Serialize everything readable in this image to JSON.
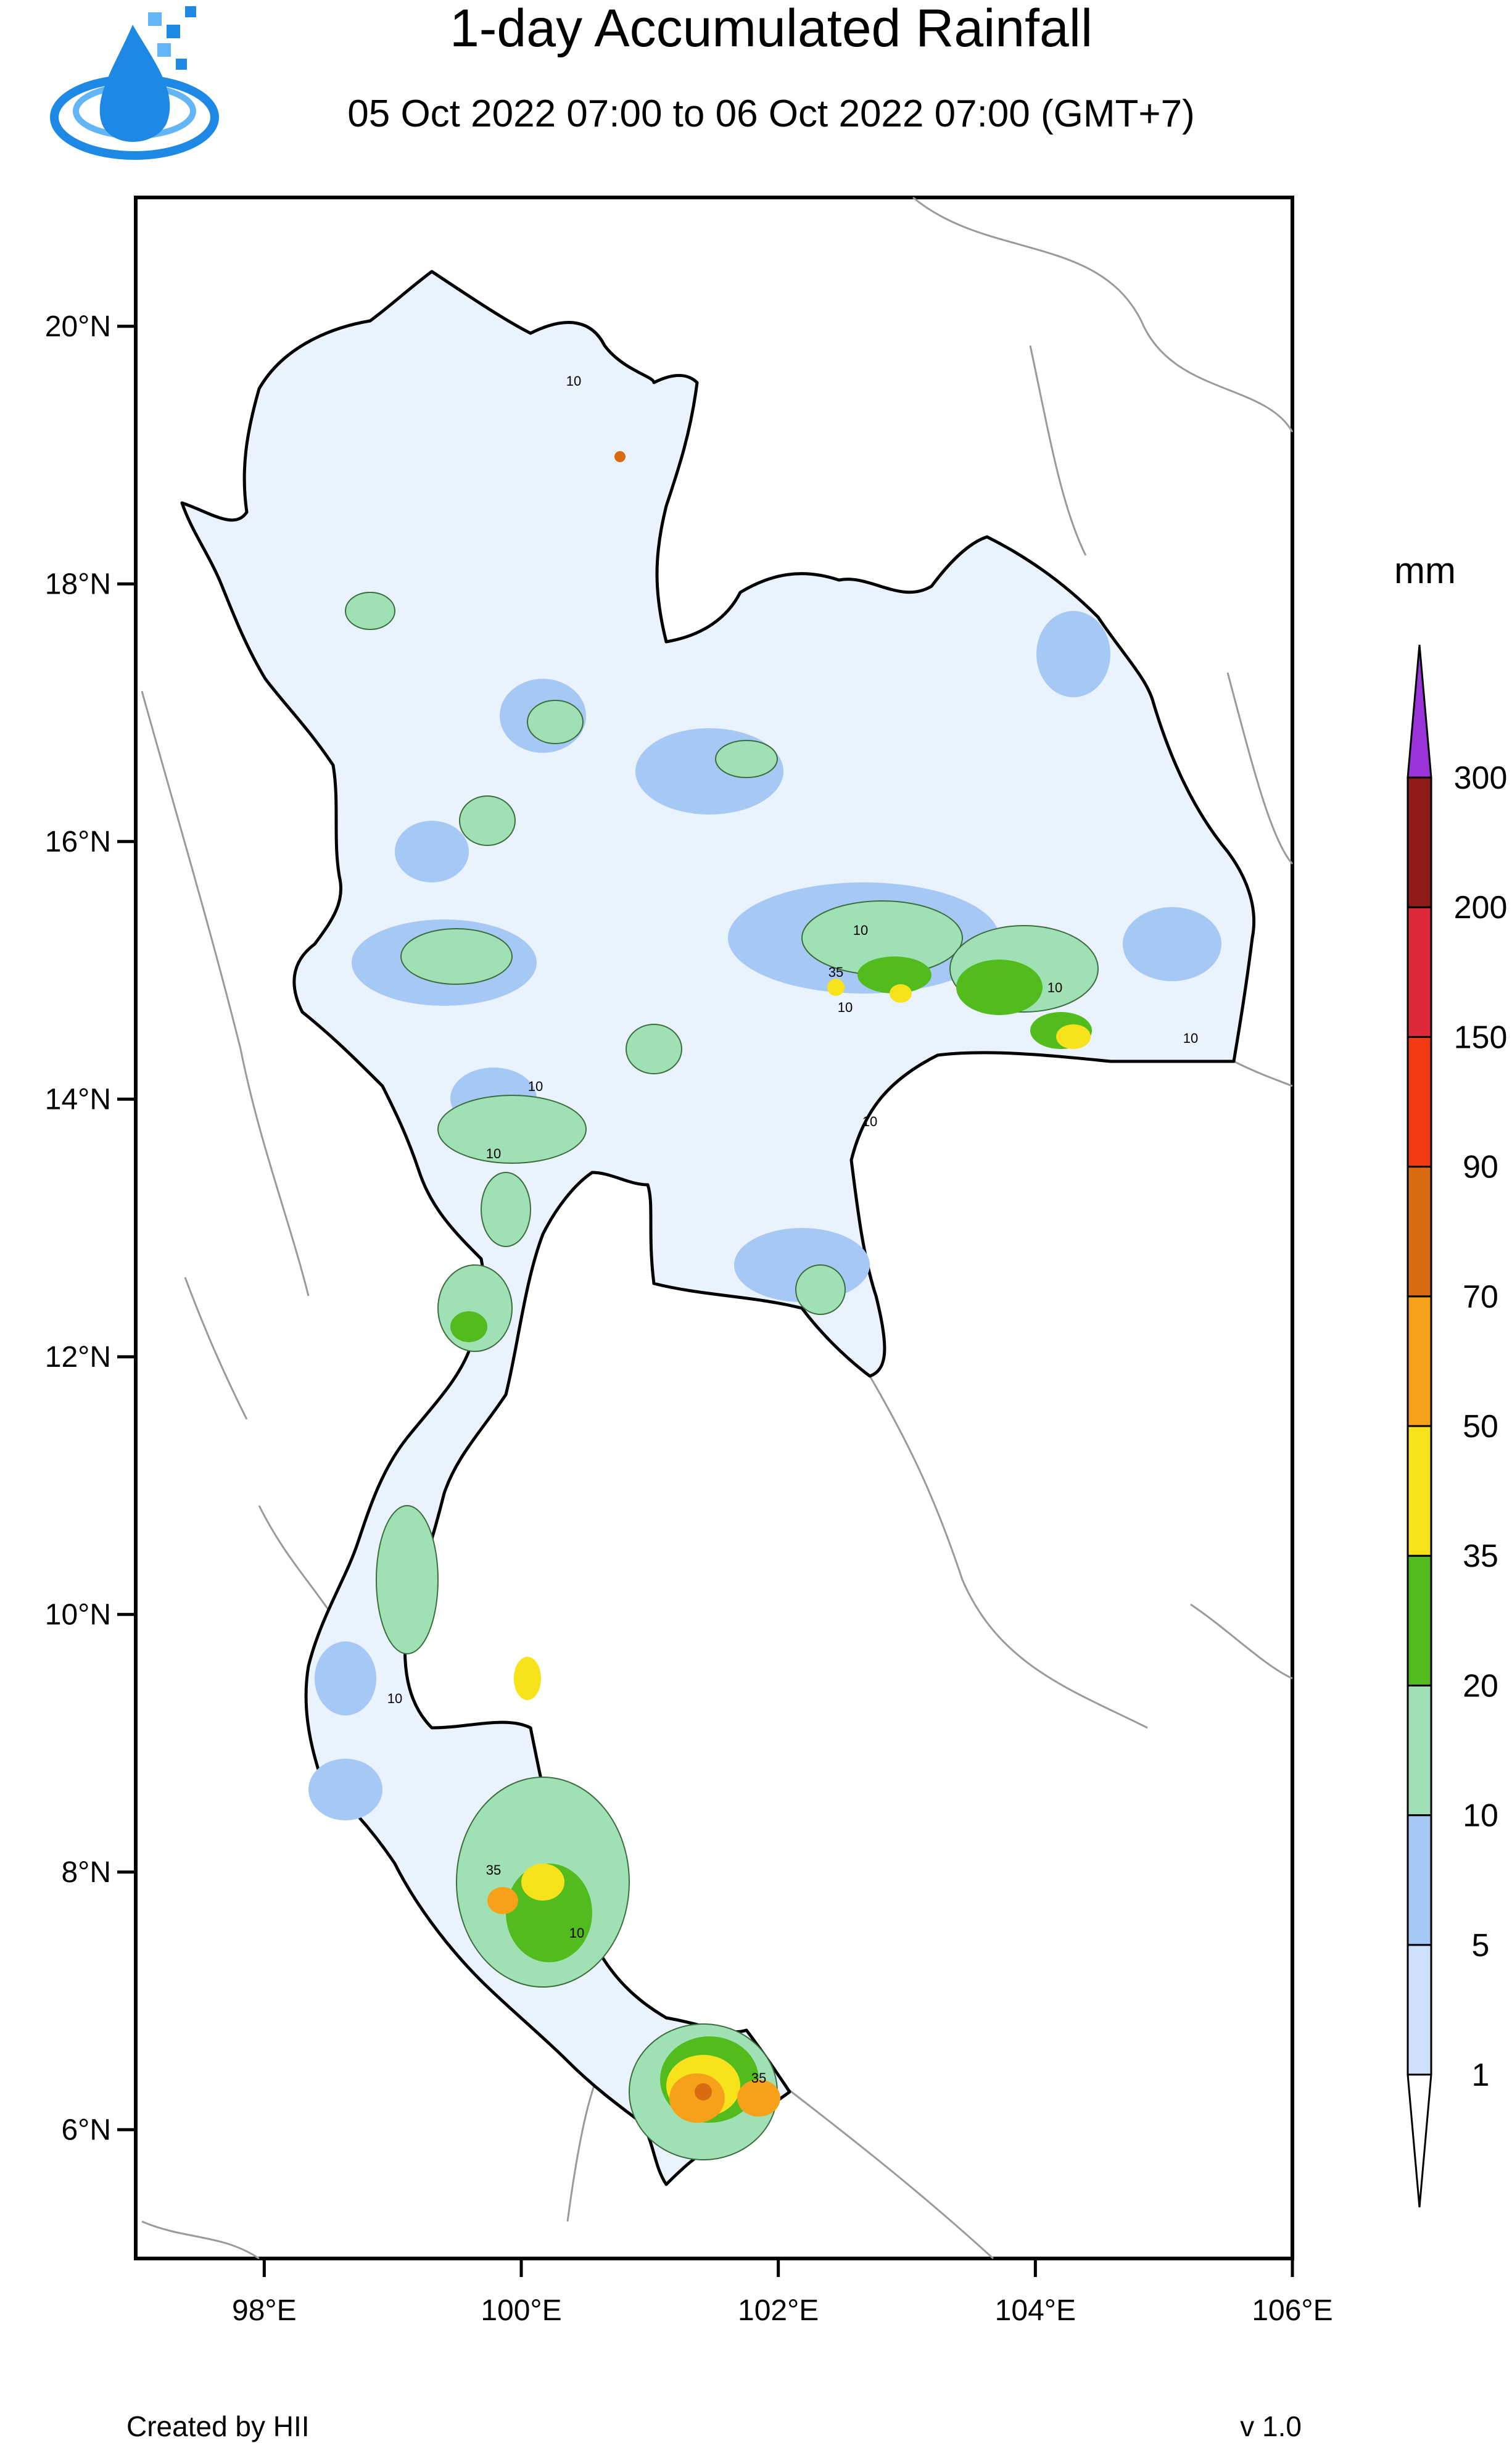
{
  "header": {
    "title": "1-day Accumulated Rainfall",
    "subtitle": "05 Oct 2022 07:00 to 06 Oct 2022 07:00 (GMT+7)"
  },
  "logo": {
    "icon": "water-drop-logo-icon",
    "colors": [
      "#1e88e5",
      "#64b5f6"
    ]
  },
  "map": {
    "lon_range": [
      97,
      106
    ],
    "lat_range": [
      5,
      21
    ],
    "lat_ticks": [
      {
        "value": 20,
        "label": "20°N"
      },
      {
        "value": 18,
        "label": "18°N"
      },
      {
        "value": 16,
        "label": "16°N"
      },
      {
        "value": 14,
        "label": "14°N"
      },
      {
        "value": 12,
        "label": "12°N"
      },
      {
        "value": 10,
        "label": "10°N"
      },
      {
        "value": 8,
        "label": "8°N"
      },
      {
        "value": 6,
        "label": "6°N"
      }
    ],
    "lon_ticks": [
      {
        "value": 98,
        "label": "98°E"
      },
      {
        "value": 100,
        "label": "100°E"
      },
      {
        "value": 102,
        "label": "102°E"
      },
      {
        "value": 104,
        "label": "104°E"
      },
      {
        "value": 106,
        "label": "106°E"
      }
    ],
    "contour_label": "10",
    "contour_label_2": "35"
  },
  "legend": {
    "unit": "mm",
    "levels": [
      "1",
      "5",
      "10",
      "20",
      "35",
      "50",
      "70",
      "90",
      "150",
      "200",
      "300"
    ],
    "colors": [
      "#ffffff",
      "#cfe2fb",
      "#a6c8f4",
      "#9fe0b5",
      "#52bb1d",
      "#f7e21c",
      "#f7a11a",
      "#d96b12",
      "#f23b12",
      "#dc2a3a",
      "#8e1a1a",
      "#9a33d8"
    ]
  },
  "footer": {
    "credit": "Created by HII",
    "version": "v 1.0"
  }
}
